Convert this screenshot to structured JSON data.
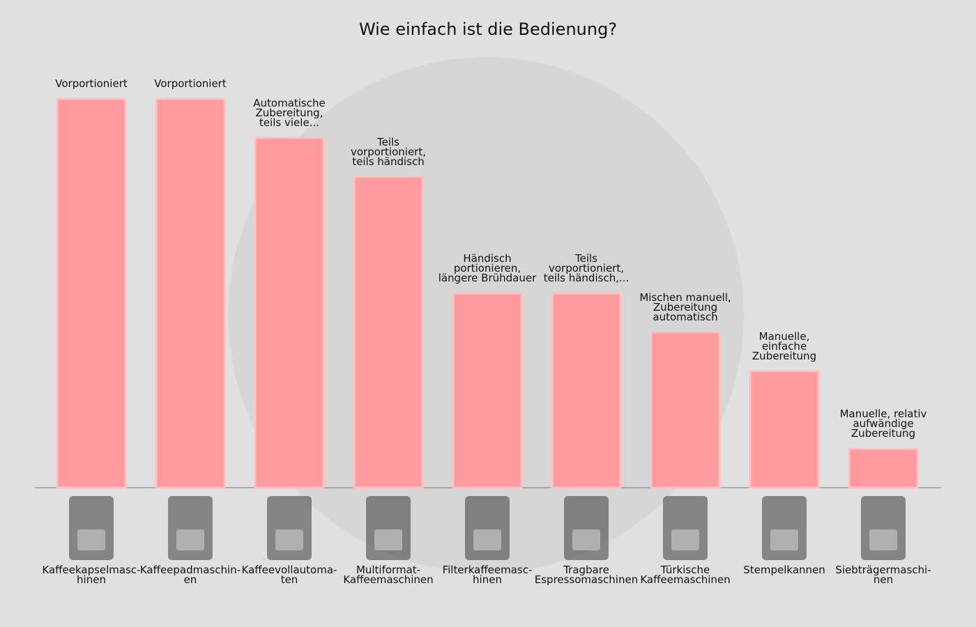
{
  "chart_data": {
    "type": "bar",
    "title": "Wie einfach ist die Bedienung?",
    "categories": [
      "Kaffeekapselmasc-\nhinen",
      "Kaffeepadmaschin-\nen",
      "Kaffeevollautoma-\nten",
      "Multiformat-\nKaffeemaschinen",
      "Filterkaffeemasc-\nhinen",
      "Tragbare\nEspressomaschinen",
      "Türkische\nKaffeemaschinen",
      "Stempelkannen",
      "Siebträgermaschi-\nnen"
    ],
    "values": [
      10,
      10,
      9,
      8,
      5,
      5,
      4,
      3,
      1
    ],
    "annotations": [
      "Vorportioniert",
      "Vorportioniert",
      "Automatische\nZubereitung,\nteils viele...",
      "Teils\nvorportioniert,\nteils händisch",
      "Händisch\nportionieren,\nlängere Brühdauer",
      "Teils\nvorportioniert,\nteils händisch,...",
      "Mischen manuell,\nZubereitung\nautomatisch",
      "Manuelle,\neinfache\nZubereitung",
      "Manuelle, relativ\naufwändige\nZubereitung"
    ],
    "color": "#ff9a9e",
    "ylim": [
      0,
      10
    ]
  }
}
